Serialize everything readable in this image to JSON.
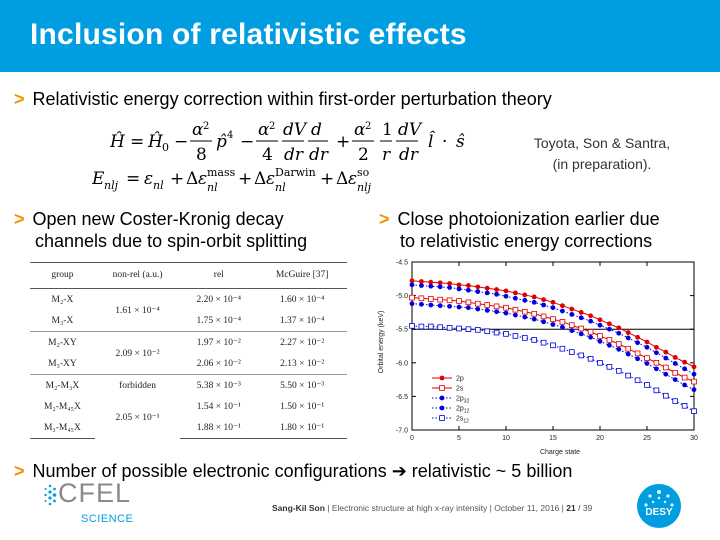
{
  "title": "Inclusion of relativistic effects",
  "bullets": {
    "b1": "Relativistic energy correction within first-order perturbation theory",
    "b2_line1": "Open new Coster-Kronig decay",
    "b2_line2": "channels due to spin-orbit splitting",
    "b3_line1": "Close photoionization earlier due",
    "b3_line2": "to relativistic energy corrections",
    "b4": "Number of possible electronic configurations ➔ relativistic ~ 5 billion"
  },
  "citation": {
    "line1": "Toyota, Son & Santra,",
    "line2": "(in preparation)."
  },
  "equations": {
    "eq1": "Ĥ = Ĥ₀ − (α²/8) p̂⁴ − (α²/4)(dV/dr)(d/dr) + (α²/2)(1/r)(dV/dr) l̂·ŝ",
    "eq2": "E_nlj = ε_nl + Δε_nl^mass + Δε_nl^Darwin + Δε_nlj^so"
  },
  "table": {
    "headers": [
      "group",
      "non-rel (a.u.)",
      "rel",
      "McGuire [37]"
    ],
    "rows": [
      {
        "group": "M₂-X",
        "nonrel": "1.61 × 10⁻⁴",
        "rel": "2.20 × 10⁻⁴",
        "mcguire": "1.60 × 10⁻⁴"
      },
      {
        "group": "M₃-X",
        "nonrel": "",
        "rel": "1.75 × 10⁻⁴",
        "mcguire": "1.37 × 10⁻⁴"
      },
      {
        "group": "M₂-XY",
        "nonrel": "2.09 × 10⁻²",
        "rel": "1.97 × 10⁻²",
        "mcguire": "2.27 × 10⁻²"
      },
      {
        "group": "M₃-XY",
        "nonrel": "",
        "rel": "2.06 × 10⁻²",
        "mcguire": "2.13 × 10⁻²"
      },
      {
        "group": "M₂-M₃X",
        "nonrel": "forbidden",
        "rel": "5.38 × 10⁻³",
        "mcguire": "5.50 × 10⁻³"
      },
      {
        "group": "M₂-M₄₅X",
        "nonrel": "2.05 × 10⁻¹",
        "rel": "1.54 × 10⁻¹",
        "mcguire": "1.50 × 10⁻¹"
      },
      {
        "group": "M₃-M₄₅X",
        "nonrel": "",
        "rel": "1.88 × 10⁻¹",
        "mcguire": "1.80 × 10⁻¹"
      }
    ]
  },
  "chart_data": {
    "type": "line",
    "xlabel": "Charge state",
    "ylabel": "Orbital energy (keV)",
    "xlim": [
      0,
      30
    ],
    "ylim": [
      -7.0,
      -4.5
    ],
    "xticks": [
      0,
      5,
      10,
      15,
      20,
      25,
      30
    ],
    "yticks": [
      -4.5,
      -5.0,
      -5.5,
      -6.0,
      -6.5,
      -7.0
    ],
    "hline": -5.5,
    "legend_position": "bottom-left",
    "series": [
      {
        "name": "2p",
        "style": "solid",
        "marker": "filled-circle",
        "color": "#e00000",
        "x": [
          0,
          1,
          2,
          3,
          4,
          5,
          6,
          7,
          8,
          9,
          10,
          11,
          12,
          13,
          14,
          15,
          16,
          17,
          18,
          19,
          20,
          21,
          22,
          23,
          24,
          25,
          26,
          27,
          28,
          29,
          30
        ],
        "y": [
          -4.78,
          -4.79,
          -4.8,
          -4.81,
          -4.82,
          -4.84,
          -4.85,
          -4.87,
          -4.89,
          -4.91,
          -4.93,
          -4.96,
          -4.99,
          -5.02,
          -5.06,
          -5.1,
          -5.15,
          -5.2,
          -5.25,
          -5.3,
          -5.36,
          -5.42,
          -5.48,
          -5.55,
          -5.62,
          -5.69,
          -5.77,
          -5.84,
          -5.92,
          -5.99,
          -6.06
        ]
      },
      {
        "name": "2s",
        "style": "solid",
        "marker": "open-square",
        "color": "#e00000",
        "x": [
          0,
          1,
          2,
          3,
          4,
          5,
          6,
          7,
          8,
          9,
          10,
          11,
          12,
          13,
          14,
          15,
          16,
          17,
          18,
          19,
          20,
          21,
          22,
          23,
          24,
          25,
          26,
          27,
          28,
          29,
          30
        ],
        "y": [
          -5.03,
          -5.04,
          -5.05,
          -5.06,
          -5.07,
          -5.08,
          -5.1,
          -5.12,
          -5.14,
          -5.16,
          -5.18,
          -5.21,
          -5.24,
          -5.27,
          -5.31,
          -5.35,
          -5.39,
          -5.44,
          -5.49,
          -5.54,
          -5.6,
          -5.66,
          -5.72,
          -5.79,
          -5.86,
          -5.93,
          -6.0,
          -6.07,
          -6.15,
          -6.22,
          -6.28
        ]
      },
      {
        "name": "2p3/2",
        "style": "dotted",
        "marker": "filled-circle",
        "color": "#0000e0",
        "x": [
          0,
          1,
          2,
          3,
          4,
          5,
          6,
          7,
          8,
          9,
          10,
          11,
          12,
          13,
          14,
          15,
          16,
          17,
          18,
          19,
          20,
          21,
          22,
          23,
          24,
          25,
          26,
          27,
          28,
          29,
          30
        ],
        "y": [
          -4.84,
          -4.85,
          -4.86,
          -4.87,
          -4.88,
          -4.9,
          -4.92,
          -4.94,
          -4.96,
          -4.98,
          -5.01,
          -5.04,
          -5.07,
          -5.1,
          -5.14,
          -5.18,
          -5.23,
          -5.28,
          -5.33,
          -5.38,
          -5.44,
          -5.5,
          -5.56,
          -5.63,
          -5.7,
          -5.77,
          -5.85,
          -5.93,
          -6.01,
          -6.09,
          -6.17
        ]
      },
      {
        "name": "2p1/2",
        "style": "dotted",
        "marker": "filled-circle",
        "color": "#0000e0",
        "x": [
          0,
          1,
          2,
          3,
          4,
          5,
          6,
          7,
          8,
          9,
          10,
          11,
          12,
          13,
          14,
          15,
          16,
          17,
          18,
          19,
          20,
          21,
          22,
          23,
          24,
          25,
          26,
          27,
          28,
          29,
          30
        ],
        "y": [
          -5.12,
          -5.13,
          -5.14,
          -5.15,
          -5.16,
          -5.17,
          -5.18,
          -5.2,
          -5.22,
          -5.24,
          -5.26,
          -5.29,
          -5.32,
          -5.35,
          -5.39,
          -5.43,
          -5.47,
          -5.52,
          -5.57,
          -5.62,
          -5.68,
          -5.74,
          -5.8,
          -5.87,
          -5.94,
          -6.01,
          -6.09,
          -6.17,
          -6.25,
          -6.33,
          -6.4
        ]
      },
      {
        "name": "2s1/2",
        "style": "dotted",
        "marker": "open-square",
        "color": "#0000e0",
        "x": [
          0,
          1,
          2,
          3,
          4,
          5,
          6,
          7,
          8,
          9,
          10,
          11,
          12,
          13,
          14,
          15,
          16,
          17,
          18,
          19,
          20,
          21,
          22,
          23,
          24,
          25,
          26,
          27,
          28,
          29,
          30
        ],
        "y": [
          -5.45,
          -5.46,
          -5.46,
          -5.47,
          -5.48,
          -5.49,
          -5.5,
          -5.51,
          -5.53,
          -5.55,
          -5.57,
          -5.6,
          -5.63,
          -5.66,
          -5.7,
          -5.74,
          -5.79,
          -5.84,
          -5.89,
          -5.94,
          -6.0,
          -6.06,
          -6.12,
          -6.19,
          -6.26,
          -6.33,
          -6.41,
          -6.49,
          -6.57,
          -6.64,
          -6.72
        ]
      }
    ]
  },
  "footer": {
    "author": "Sang-Kil Son",
    "talk": "Electronic structure at high x-ray intensity",
    "date": "October 11, 2016",
    "page": "21",
    "total": "/ 39"
  },
  "logos": {
    "left_text": "CFEL",
    "left_sub": "SCIENCE",
    "right_text": "DESY",
    "accent": "#009ee0",
    "orange": "#f39200"
  }
}
